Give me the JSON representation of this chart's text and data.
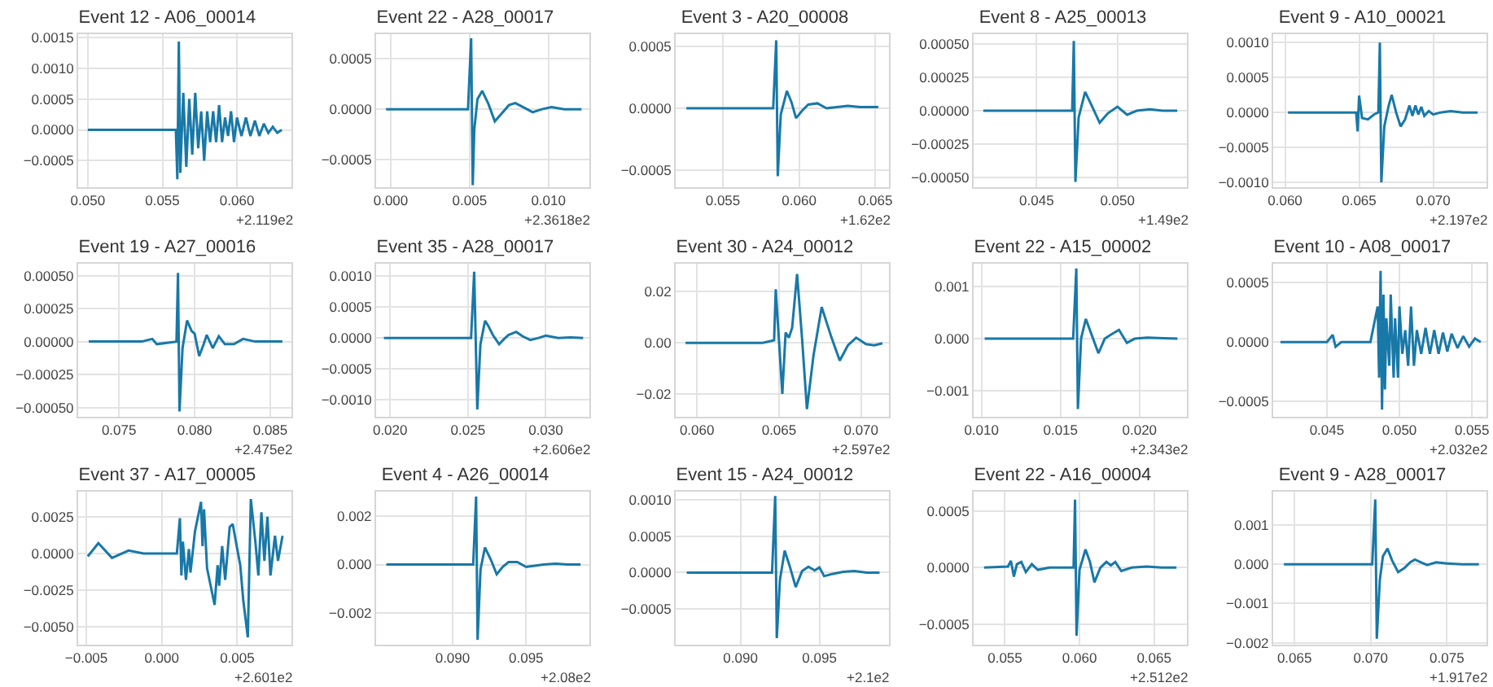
{
  "chart_data": [
    {
      "type": "line",
      "title": "Event 12 - A06_00014",
      "annotations": [
        "+2.119e2"
      ],
      "color": "#1878a8",
      "grid": true,
      "xlim": [
        0.04935,
        0.06365
      ],
      "ylim": [
        -0.00093,
        0.00155
      ],
      "xticks": [
        {
          "value": 0.05,
          "label": "0.050"
        },
        {
          "value": 0.055,
          "label": "0.055"
        },
        {
          "value": 0.06,
          "label": "0.060"
        }
      ],
      "yticks": [
        {
          "value": -0.0005,
          "label": "−0.0005"
        },
        {
          "value": 0,
          "label": "0.0000"
        },
        {
          "value": 0.0005,
          "label": "0.0005"
        },
        {
          "value": 0.001,
          "label": "0.0010"
        },
        {
          "value": 0.0015,
          "label": "0.0015"
        }
      ],
      "x": [
        0.05,
        0.0555,
        0.0559,
        0.056,
        0.0561,
        0.0562,
        0.0564,
        0.0566,
        0.0568,
        0.057,
        0.0572,
        0.0574,
        0.0576,
        0.0578,
        0.058,
        0.0582,
        0.0584,
        0.0586,
        0.0588,
        0.059,
        0.0592,
        0.0594,
        0.0596,
        0.0598,
        0.06,
        0.0603,
        0.0606,
        0.0609,
        0.0612,
        0.0615,
        0.0618,
        0.0621,
        0.0624,
        0.0627,
        0.063
      ],
      "values": [
        0,
        0,
        0,
        -0.0008,
        0.00143,
        -0.0007,
        0.0006,
        -0.0006,
        0.0005,
        -0.0004,
        0.0006,
        -0.0003,
        0.0003,
        -0.0005,
        0.0003,
        -0.0002,
        0.0003,
        -0.0002,
        0.0004,
        -0.0002,
        0.0002,
        -0.0001,
        0.0003,
        -0.0002,
        0.0002,
        -0.0001,
        0.0002,
        -0.0001,
        0.00015,
        -0.0001,
        0.0001,
        -5e-05,
        5e-05,
        -5e-05,
        0
      ]
    },
    {
      "type": "line",
      "title": "Event 22 - A28_00017",
      "annotations": [
        "+2.3618e2"
      ],
      "color": "#1878a8",
      "grid": true,
      "xlim": [
        -0.00093,
        0.0126
      ],
      "ylim": [
        -0.00077,
        0.00074
      ],
      "xticks": [
        {
          "value": 0,
          "label": "0.000"
        },
        {
          "value": 0.005,
          "label": "0.005"
        },
        {
          "value": 0.01,
          "label": "0.010"
        }
      ],
      "yticks": [
        {
          "value": -0.0005,
          "label": "−0.0005"
        },
        {
          "value": 0,
          "label": "0.0000"
        },
        {
          "value": 0.0005,
          "label": "0.0005"
        }
      ],
      "x": [
        -0.0003,
        0.0049,
        0.0051,
        0.0052,
        0.0053,
        0.0055,
        0.0058,
        0.0062,
        0.0066,
        0.007,
        0.0075,
        0.0079,
        0.0084,
        0.009,
        0.0096,
        0.0102,
        0.011,
        0.0121
      ],
      "values": [
        0,
        0,
        0.0007,
        -0.00075,
        -0.0002,
        0.0001,
        0.00018,
        5e-05,
        -0.00012,
        -5e-05,
        4e-05,
        6e-05,
        2e-05,
        -3e-05,
        0,
        2e-05,
        0,
        0
      ]
    },
    {
      "type": "line",
      "title": "Event 3 - A20_00008",
      "annotations": [
        "+1.62e2"
      ],
      "color": "#1878a8",
      "grid": true,
      "xlim": [
        0.0519,
        0.0659
      ],
      "ylim": [
        -0.00064,
        0.0006
      ],
      "xticks": [
        {
          "value": 0.055,
          "label": "0.055"
        },
        {
          "value": 0.06,
          "label": "0.060"
        },
        {
          "value": 0.065,
          "label": "0.065"
        }
      ],
      "yticks": [
        {
          "value": -0.0005,
          "label": "−0.0005"
        },
        {
          "value": 0,
          "label": "0.0000"
        },
        {
          "value": 0.0005,
          "label": "0.0005"
        }
      ],
      "x": [
        0.0526,
        0.0583,
        0.0585,
        0.0586,
        0.0588,
        0.0592,
        0.0595,
        0.0598,
        0.0602,
        0.0606,
        0.0612,
        0.0618,
        0.0625,
        0.0632,
        0.064,
        0.0652
      ],
      "values": [
        0,
        0,
        0.00055,
        -0.00055,
        -5e-05,
        0.00014,
        5e-05,
        -8e-05,
        -2e-05,
        3e-05,
        4e-05,
        0,
        1e-05,
        2e-05,
        1e-05,
        1e-05
      ]
    },
    {
      "type": "line",
      "title": "Event 8 - A25_00013",
      "annotations": [
        "+1.49e2"
      ],
      "color": "#1878a8",
      "grid": true,
      "xlim": [
        0.0411,
        0.0543
      ],
      "ylim": [
        -0.00057,
        0.00057
      ],
      "xticks": [
        {
          "value": 0.045,
          "label": "0.045"
        },
        {
          "value": 0.05,
          "label": "0.050"
        }
      ],
      "yticks": [
        {
          "value": -0.0005,
          "label": "−0.00050"
        },
        {
          "value": -0.00025,
          "label": "−0.00025"
        },
        {
          "value": 0,
          "label": "0.00000"
        },
        {
          "value": 0.00025,
          "label": "0.00025"
        },
        {
          "value": 0.0005,
          "label": "0.00050"
        }
      ],
      "x": [
        0.0417,
        0.0472,
        0.0473,
        0.0474,
        0.0476,
        0.048,
        0.0484,
        0.0489,
        0.0494,
        0.05,
        0.0506,
        0.0512,
        0.052,
        0.0528,
        0.0537
      ],
      "values": [
        0,
        0,
        0.00052,
        -0.00053,
        -5e-05,
        0.00014,
        4e-05,
        -9e-05,
        -2e-05,
        3e-05,
        -3e-05,
        0,
        1e-05,
        0,
        0
      ]
    },
    {
      "type": "line",
      "title": "Event 9 - A10_00021",
      "annotations": [
        "+2.197e2"
      ],
      "color": "#1878a8",
      "grid": true,
      "xlim": [
        0.0592,
        0.0736
      ],
      "ylim": [
        -0.00107,
        0.00112
      ],
      "xticks": [
        {
          "value": 0.06,
          "label": "0.060"
        },
        {
          "value": 0.065,
          "label": "0.065"
        },
        {
          "value": 0.07,
          "label": "0.070"
        }
      ],
      "yticks": [
        {
          "value": -0.001,
          "label": "−0.0010"
        },
        {
          "value": -0.0005,
          "label": "−0.0005"
        },
        {
          "value": 0,
          "label": "0.0000"
        },
        {
          "value": 0.0005,
          "label": "0.0005"
        },
        {
          "value": 0.001,
          "label": "0.0010"
        }
      ],
      "x": [
        0.0602,
        0.064,
        0.0648,
        0.0649,
        0.065,
        0.0652,
        0.0656,
        0.066,
        0.0663,
        0.0664,
        0.0665,
        0.0667,
        0.067,
        0.0672,
        0.0675,
        0.0678,
        0.0681,
        0.0684,
        0.0686,
        0.0688,
        0.069,
        0.0692,
        0.0694,
        0.0697,
        0.07,
        0.0705,
        0.0712,
        0.072,
        0.073
      ],
      "values": [
        0,
        0,
        0,
        -0.00027,
        0.00024,
        -8e-05,
        -0.0001,
        -3e-05,
        0,
        0.001,
        -0.001,
        -0.0002,
        0.0001,
        0.00025,
        0,
        -0.0002,
        -0.0001,
        0.0001,
        -5e-05,
        0.0001,
        -3e-05,
        8e-05,
        -5e-05,
        2e-05,
        -3e-05,
        0,
        2e-05,
        0,
        0
      ]
    },
    {
      "type": "line",
      "title": "Event 19 - A27_00016",
      "annotations": [
        "+2.475e2"
      ],
      "color": "#1878a8",
      "grid": true,
      "xlim": [
        0.0723,
        0.0864
      ],
      "ylim": [
        -0.00057,
        0.00059
      ],
      "xticks": [
        {
          "value": 0.075,
          "label": "0.075"
        },
        {
          "value": 0.08,
          "label": "0.080"
        },
        {
          "value": 0.085,
          "label": "0.085"
        }
      ],
      "yticks": [
        {
          "value": -0.0005,
          "label": "−0.00050"
        },
        {
          "value": -0.00025,
          "label": "−0.00025"
        },
        {
          "value": 0,
          "label": "0.00000"
        },
        {
          "value": 0.00025,
          "label": "0.00025"
        },
        {
          "value": 0.0005,
          "label": "0.00050"
        }
      ],
      "x": [
        0.073,
        0.0765,
        0.0772,
        0.0775,
        0.0788,
        0.0789,
        0.079,
        0.0792,
        0.0795,
        0.0798,
        0.08,
        0.0803,
        0.0806,
        0.0808,
        0.0812,
        0.0816,
        0.082,
        0.0826,
        0.0832,
        0.084,
        0.0848,
        0.0858
      ],
      "values": [
        0,
        0,
        2e-05,
        -2e-05,
        0,
        0.00052,
        -0.00053,
        -5e-05,
        0.00016,
        8e-05,
        6e-05,
        -0.00011,
        -2e-05,
        5e-05,
        -5e-05,
        4e-05,
        -2e-05,
        -2e-05,
        2e-05,
        0,
        0,
        0
      ]
    },
    {
      "type": "line",
      "title": "Event 35 - A28_00017",
      "annotations": [
        "+2.606e2"
      ],
      "color": "#1878a8",
      "grid": true,
      "xlim": [
        0.0191,
        0.0328
      ],
      "ylim": [
        -0.00127,
        0.0012
      ],
      "xticks": [
        {
          "value": 0.02,
          "label": "0.020"
        },
        {
          "value": 0.025,
          "label": "0.025"
        },
        {
          "value": 0.03,
          "label": "0.030"
        }
      ],
      "yticks": [
        {
          "value": -0.001,
          "label": "−0.0010"
        },
        {
          "value": -0.0005,
          "label": "−0.0005"
        },
        {
          "value": 0,
          "label": "0.0000"
        },
        {
          "value": 0.0005,
          "label": "0.0005"
        },
        {
          "value": 0.001,
          "label": "0.0010"
        }
      ],
      "x": [
        0.0196,
        0.0252,
        0.0254,
        0.0256,
        0.0258,
        0.0261,
        0.0263,
        0.0266,
        0.027,
        0.0273,
        0.0276,
        0.0281,
        0.0285,
        0.029,
        0.0295,
        0.03,
        0.0308,
        0.0316,
        0.0324
      ],
      "values": [
        0,
        0,
        0.00107,
        -0.00115,
        -0.0001,
        0.00028,
        0.0002,
        5e-05,
        -0.0001,
        -2e-05,
        5e-05,
        0.0001,
        3e-05,
        -3e-05,
        0,
        4e-05,
        0,
        1e-05,
        0
      ]
    },
    {
      "type": "line",
      "title": "Event 30 - A24_00012",
      "annotations": [
        "+2.597e2"
      ],
      "color": "#1878a8",
      "grid": true,
      "xlim": [
        0.0587,
        0.0717
      ],
      "ylim": [
        -0.029,
        0.031
      ],
      "xticks": [
        {
          "value": 0.06,
          "label": "0.060"
        },
        {
          "value": 0.065,
          "label": "0.065"
        },
        {
          "value": 0.07,
          "label": "0.070"
        }
      ],
      "yticks": [
        {
          "value": -0.02,
          "label": "−0.02"
        },
        {
          "value": 0,
          "label": "0.00"
        },
        {
          "value": 0.02,
          "label": "0.02"
        }
      ],
      "x": [
        0.0593,
        0.064,
        0.0647,
        0.0648,
        0.0652,
        0.0654,
        0.0656,
        0.0658,
        0.0661,
        0.0664,
        0.0667,
        0.0671,
        0.0676,
        0.0682,
        0.0687,
        0.0692,
        0.0697,
        0.0703,
        0.0708,
        0.0713
      ],
      "values": [
        0,
        0,
        0.001,
        0.021,
        -0.02,
        0.004,
        0.002,
        0.006,
        0.027,
        0.002,
        -0.026,
        -0.005,
        0.014,
        0.002,
        -0.007,
        -0.001,
        0.002,
        -0.0005,
        -0.001,
        -0.0002
      ]
    },
    {
      "type": "line",
      "title": "Event 22 - A15_00002",
      "annotations": [
        "+2.343e2"
      ],
      "color": "#1878a8",
      "grid": true,
      "xlim": [
        0.0095,
        0.023
      ],
      "ylim": [
        -0.0015,
        0.00144
      ],
      "xticks": [
        {
          "value": 0.01,
          "label": "0.010"
        },
        {
          "value": 0.015,
          "label": "0.015"
        },
        {
          "value": 0.02,
          "label": "0.020"
        }
      ],
      "yticks": [
        {
          "value": -0.001,
          "label": "−0.001"
        },
        {
          "value": 0,
          "label": "0.000"
        },
        {
          "value": 0.001,
          "label": "0.001"
        }
      ],
      "x": [
        0.0102,
        0.0158,
        0.016,
        0.0161,
        0.0163,
        0.0166,
        0.017,
        0.0174,
        0.0178,
        0.0182,
        0.0187,
        0.0192,
        0.0197,
        0.0205,
        0.0215,
        0.0224
      ],
      "values": [
        0,
        0,
        0.00135,
        -0.00135,
        0,
        0.00038,
        5e-05,
        -0.00028,
        0,
        8e-05,
        0.00017,
        -8e-05,
        0,
        2e-05,
        1e-05,
        0
      ]
    },
    {
      "type": "line",
      "title": "Event 10 - A08_00017",
      "annotations": [
        "+2.032e2"
      ],
      "color": "#1878a8",
      "grid": true,
      "xlim": [
        0.0413,
        0.056
      ],
      "ylim": [
        -0.00063,
        0.00066
      ],
      "xticks": [
        {
          "value": 0.045,
          "label": "0.045"
        },
        {
          "value": 0.05,
          "label": "0.050"
        },
        {
          "value": 0.055,
          "label": "0.055"
        }
      ],
      "yticks": [
        {
          "value": -0.0005,
          "label": "−0.0005"
        },
        {
          "value": 0,
          "label": "0.0000"
        },
        {
          "value": 0.0005,
          "label": "0.0005"
        }
      ],
      "x": [
        0.0418,
        0.045,
        0.0454,
        0.0456,
        0.046,
        0.048,
        0.0485,
        0.0486,
        0.0487,
        0.0488,
        0.0489,
        0.049,
        0.0491,
        0.0493,
        0.0494,
        0.0496,
        0.0497,
        0.0499,
        0.05,
        0.0502,
        0.0504,
        0.0506,
        0.0508,
        0.051,
        0.0512,
        0.0515,
        0.0518,
        0.0521,
        0.0524,
        0.0527,
        0.053,
        0.0533,
        0.0536,
        0.054,
        0.0544,
        0.0548,
        0.0552,
        0.0556
      ],
      "values": [
        0,
        0,
        6e-05,
        -4e-05,
        0,
        0,
        0.0003,
        -0.0003,
        0.0006,
        -0.00057,
        0.0004,
        -0.0004,
        0.0002,
        -0.0002,
        0.0004,
        -0.0003,
        0.0002,
        -0.0003,
        0.0003,
        -0.0001,
        0.0001,
        -0.0002,
        0.0003,
        -0.0002,
        0.0001,
        -0.0001,
        0.00012,
        -0.0001,
        0.0001,
        -0.0001,
        8e-05,
        -8e-05,
        7e-05,
        -5e-05,
        5e-05,
        -4e-05,
        3e-05,
        0
      ]
    },
    {
      "type": "line",
      "title": "Event 37 - A17_00005",
      "annotations": [
        "+2.601e2"
      ],
      "color": "#1878a8",
      "grid": true,
      "xlim": [
        -0.00554,
        0.00859
      ],
      "ylim": [
        -0.0062,
        0.0042
      ],
      "xticks": [
        {
          "value": -0.005,
          "label": "−0.005"
        },
        {
          "value": 0,
          "label": "0.000"
        },
        {
          "value": 0.005,
          "label": "0.005"
        }
      ],
      "yticks": [
        {
          "value": -0.005,
          "label": "−0.0050"
        },
        {
          "value": -0.0025,
          "label": "−0.0025"
        },
        {
          "value": 0,
          "label": "0.0000"
        },
        {
          "value": 0.0025,
          "label": "0.0025"
        }
      ],
      "x": [
        -0.0049,
        -0.0042,
        -0.0033,
        -0.0022,
        -0.0012,
        0.001,
        0.0012,
        0.0013,
        0.0014,
        0.0016,
        0.0018,
        0.0019,
        0.0022,
        0.0026,
        0.0027,
        0.0028,
        0.003,
        0.0035,
        0.0037,
        0.0038,
        0.004,
        0.0042,
        0.0045,
        0.0047,
        0.005,
        0.0052,
        0.0054,
        0.0057,
        0.0059,
        0.0062,
        0.0064,
        0.0066,
        0.0068,
        0.007,
        0.0072,
        0.0075,
        0.0077,
        0.008
      ],
      "values": [
        -0.0002,
        0.0007,
        -0.0003,
        0.0002,
        0,
        0,
        0.0024,
        -0.0015,
        0.0008,
        -0.0018,
        0.0003,
        -0.0013,
        0.0015,
        0.0035,
        0.0005,
        0.003,
        -0.001,
        -0.0035,
        -0.0008,
        -0.0022,
        0.0005,
        -0.0018,
        0.0018,
        0.002,
        0.0003,
        -0.0008,
        -0.0032,
        -0.0057,
        0.0037,
        0.0008,
        -0.0015,
        0.0028,
        -0.0005,
        0.0025,
        -0.0015,
        0.0012,
        -0.0005,
        0.0012
      ]
    },
    {
      "type": "line",
      "title": "Event 4 - A26_00014",
      "annotations": [
        "+2.08e2"
      ],
      "color": "#1878a8",
      "grid": true,
      "xlim": [
        0.0848,
        0.0993
      ],
      "ylim": [
        -0.0033,
        0.003
      ],
      "xticks": [
        {
          "value": 0.09,
          "label": "0.090"
        },
        {
          "value": 0.095,
          "label": "0.095"
        }
      ],
      "yticks": [
        {
          "value": -0.002,
          "label": "−0.002"
        },
        {
          "value": 0,
          "label": "0.000"
        },
        {
          "value": 0.002,
          "label": "0.002"
        }
      ],
      "x": [
        0.0855,
        0.0914,
        0.0916,
        0.0917,
        0.0919,
        0.0922,
        0.0926,
        0.093,
        0.0934,
        0.0938,
        0.0944,
        0.095,
        0.0956,
        0.0962,
        0.097,
        0.0978,
        0.0987
      ],
      "values": [
        0,
        0,
        0.0028,
        -0.0031,
        -0.0002,
        0.0007,
        0.0002,
        -0.0004,
        -0.0001,
        0.0001,
        0.0001,
        -0.0001,
        -5e-05,
        0,
        3e-05,
        0,
        0
      ]
    },
    {
      "type": "line",
      "title": "Event 15 - A24_00012",
      "annotations": [
        "+2.1e2"
      ],
      "color": "#1878a8",
      "grid": true,
      "xlim": [
        0.0859,
        0.0994
      ],
      "ylim": [
        -0.00099,
        0.00111
      ],
      "xticks": [
        {
          "value": 0.09,
          "label": "0.090"
        },
        {
          "value": 0.095,
          "label": "0.095"
        }
      ],
      "yticks": [
        {
          "value": -0.0005,
          "label": "−0.0005"
        },
        {
          "value": 0,
          "label": "0.0000"
        },
        {
          "value": 0.0005,
          "label": "0.0005"
        },
        {
          "value": 0.001,
          "label": "0.0010"
        }
      ],
      "x": [
        0.0866,
        0.092,
        0.0922,
        0.0923,
        0.0925,
        0.0928,
        0.0931,
        0.0935,
        0.0939,
        0.0943,
        0.0947,
        0.095,
        0.0953,
        0.0958,
        0.0965,
        0.0972,
        0.098,
        0.0988
      ],
      "values": [
        0,
        0,
        0.00105,
        -0.0009,
        -0.0001,
        0.0003,
        0.0001,
        -0.0002,
        2e-05,
        8e-05,
        3e-05,
        7e-05,
        -5e-05,
        -2e-05,
        1e-05,
        2e-05,
        0,
        0
      ]
    },
    {
      "type": "line",
      "title": "Event 22 - A16_00004",
      "annotations": [
        "+2.512e2"
      ],
      "color": "#1878a8",
      "grid": true,
      "xlim": [
        0.0529,
        0.0672
      ],
      "ylim": [
        -0.00068,
        0.00067
      ],
      "xticks": [
        {
          "value": 0.055,
          "label": "0.055"
        },
        {
          "value": 0.06,
          "label": "0.060"
        },
        {
          "value": 0.065,
          "label": "0.065"
        }
      ],
      "yticks": [
        {
          "value": -0.0005,
          "label": "−0.0005"
        },
        {
          "value": 0,
          "label": "0.0000"
        },
        {
          "value": 0.0005,
          "label": "0.0005"
        }
      ],
      "x": [
        0.0536,
        0.0552,
        0.0554,
        0.0556,
        0.0558,
        0.0561,
        0.0564,
        0.0568,
        0.0572,
        0.058,
        0.0596,
        0.0597,
        0.0598,
        0.06,
        0.0604,
        0.0607,
        0.061,
        0.0614,
        0.0618,
        0.0621,
        0.0624,
        0.0628,
        0.0635,
        0.0645,
        0.0655,
        0.0665
      ],
      "values": [
        0,
        1e-05,
        6e-05,
        -8e-05,
        3e-05,
        5e-05,
        -4e-05,
        3e-05,
        -2e-05,
        0,
        0,
        0.0006,
        -0.0006,
        -2e-05,
        0.00016,
        5e-05,
        -0.00013,
        0,
        5e-05,
        2e-05,
        5e-05,
        -3e-05,
        0,
        1e-05,
        0,
        0
      ]
    },
    {
      "type": "line",
      "title": "Event 9 - A28_00017",
      "annotations": [
        "+1.917e2"
      ],
      "color": "#1878a8",
      "grid": true,
      "xlim": [
        0.0636,
        0.0776
      ],
      "ylim": [
        -0.00205,
        0.00185
      ],
      "xticks": [
        {
          "value": 0.065,
          "label": "0.065"
        },
        {
          "value": 0.07,
          "label": "0.070"
        },
        {
          "value": 0.075,
          "label": "0.075"
        }
      ],
      "yticks": [
        {
          "value": -0.002,
          "label": "−0.002"
        },
        {
          "value": -0.001,
          "label": "−0.001"
        },
        {
          "value": 0,
          "label": "0.000"
        },
        {
          "value": 0.001,
          "label": "0.001"
        }
      ],
      "x": [
        0.0643,
        0.0701,
        0.0703,
        0.0704,
        0.0706,
        0.0708,
        0.0711,
        0.0714,
        0.0718,
        0.0722,
        0.0726,
        0.0729,
        0.0733,
        0.0737,
        0.0743,
        0.075,
        0.076,
        0.0771
      ],
      "values": [
        0,
        0,
        0.00165,
        -0.0019,
        -0.0004,
        0.0002,
        0.0004,
        0.0001,
        -0.0002,
        -0.0001,
        5e-05,
        0.00012,
        5e-05,
        -2e-05,
        5e-05,
        2e-05,
        0,
        0
      ]
    }
  ]
}
